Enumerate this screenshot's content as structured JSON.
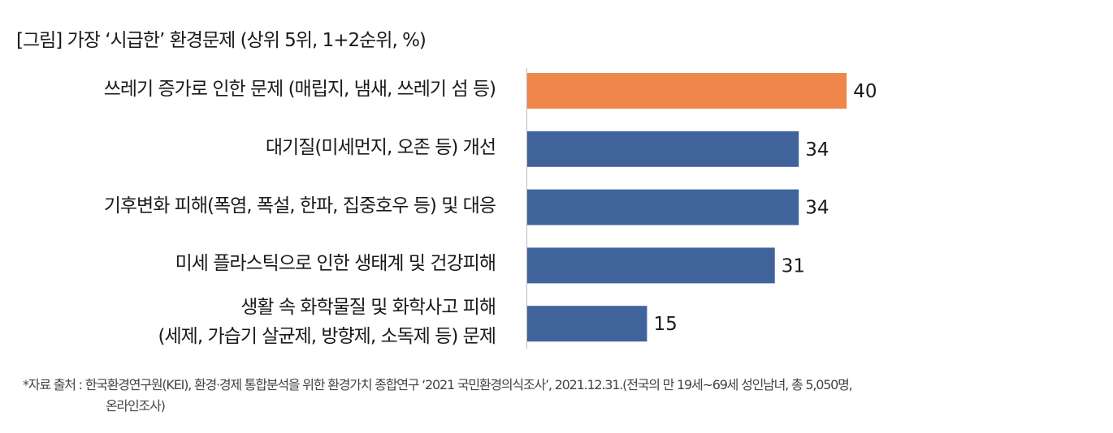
{
  "chart_data": {
    "type": "bar",
    "orientation": "horizontal",
    "title": "[그림] 가장 ‘시급한’ 환경문제 (상위 5위, 1+2순위, %)",
    "categories": [
      [
        "쓰레기 증가로 인한 문제 (매립지, 냄새, 쓰레기 섬 등)"
      ],
      [
        "대기질(미세먼지, 오존 등) 개선"
      ],
      [
        "기후변화 피해(폭염, 폭설, 한파, 집중호우 등) 및 대응"
      ],
      [
        "미세 플라스틱으로 인한 생태계 및 건강피해"
      ],
      [
        "생활 속 화학물질 및 화학사고 피해",
        "(세제, 가습기 살균제, 방향제, 소독제 등) 문제"
      ]
    ],
    "values": [
      40,
      34,
      34,
      31,
      15
    ],
    "colors": [
      "#F0874A",
      "#41639C",
      "#41639C",
      "#41639C",
      "#41639C"
    ],
    "xlim": [
      0,
      45
    ],
    "xlabel": "",
    "ylabel": "",
    "grid": false
  },
  "source": {
    "line1": "*자료 출처 : 한국환경연구원(KEI), 환경·경제 통합분석을 위한 환경가치 종합연구 ‘2021 국민환경의식조사’, 2021.12.31.(전국의 만 19세~69세 성인남녀, 총 5,050명,",
    "line2": "온라인조사)"
  }
}
